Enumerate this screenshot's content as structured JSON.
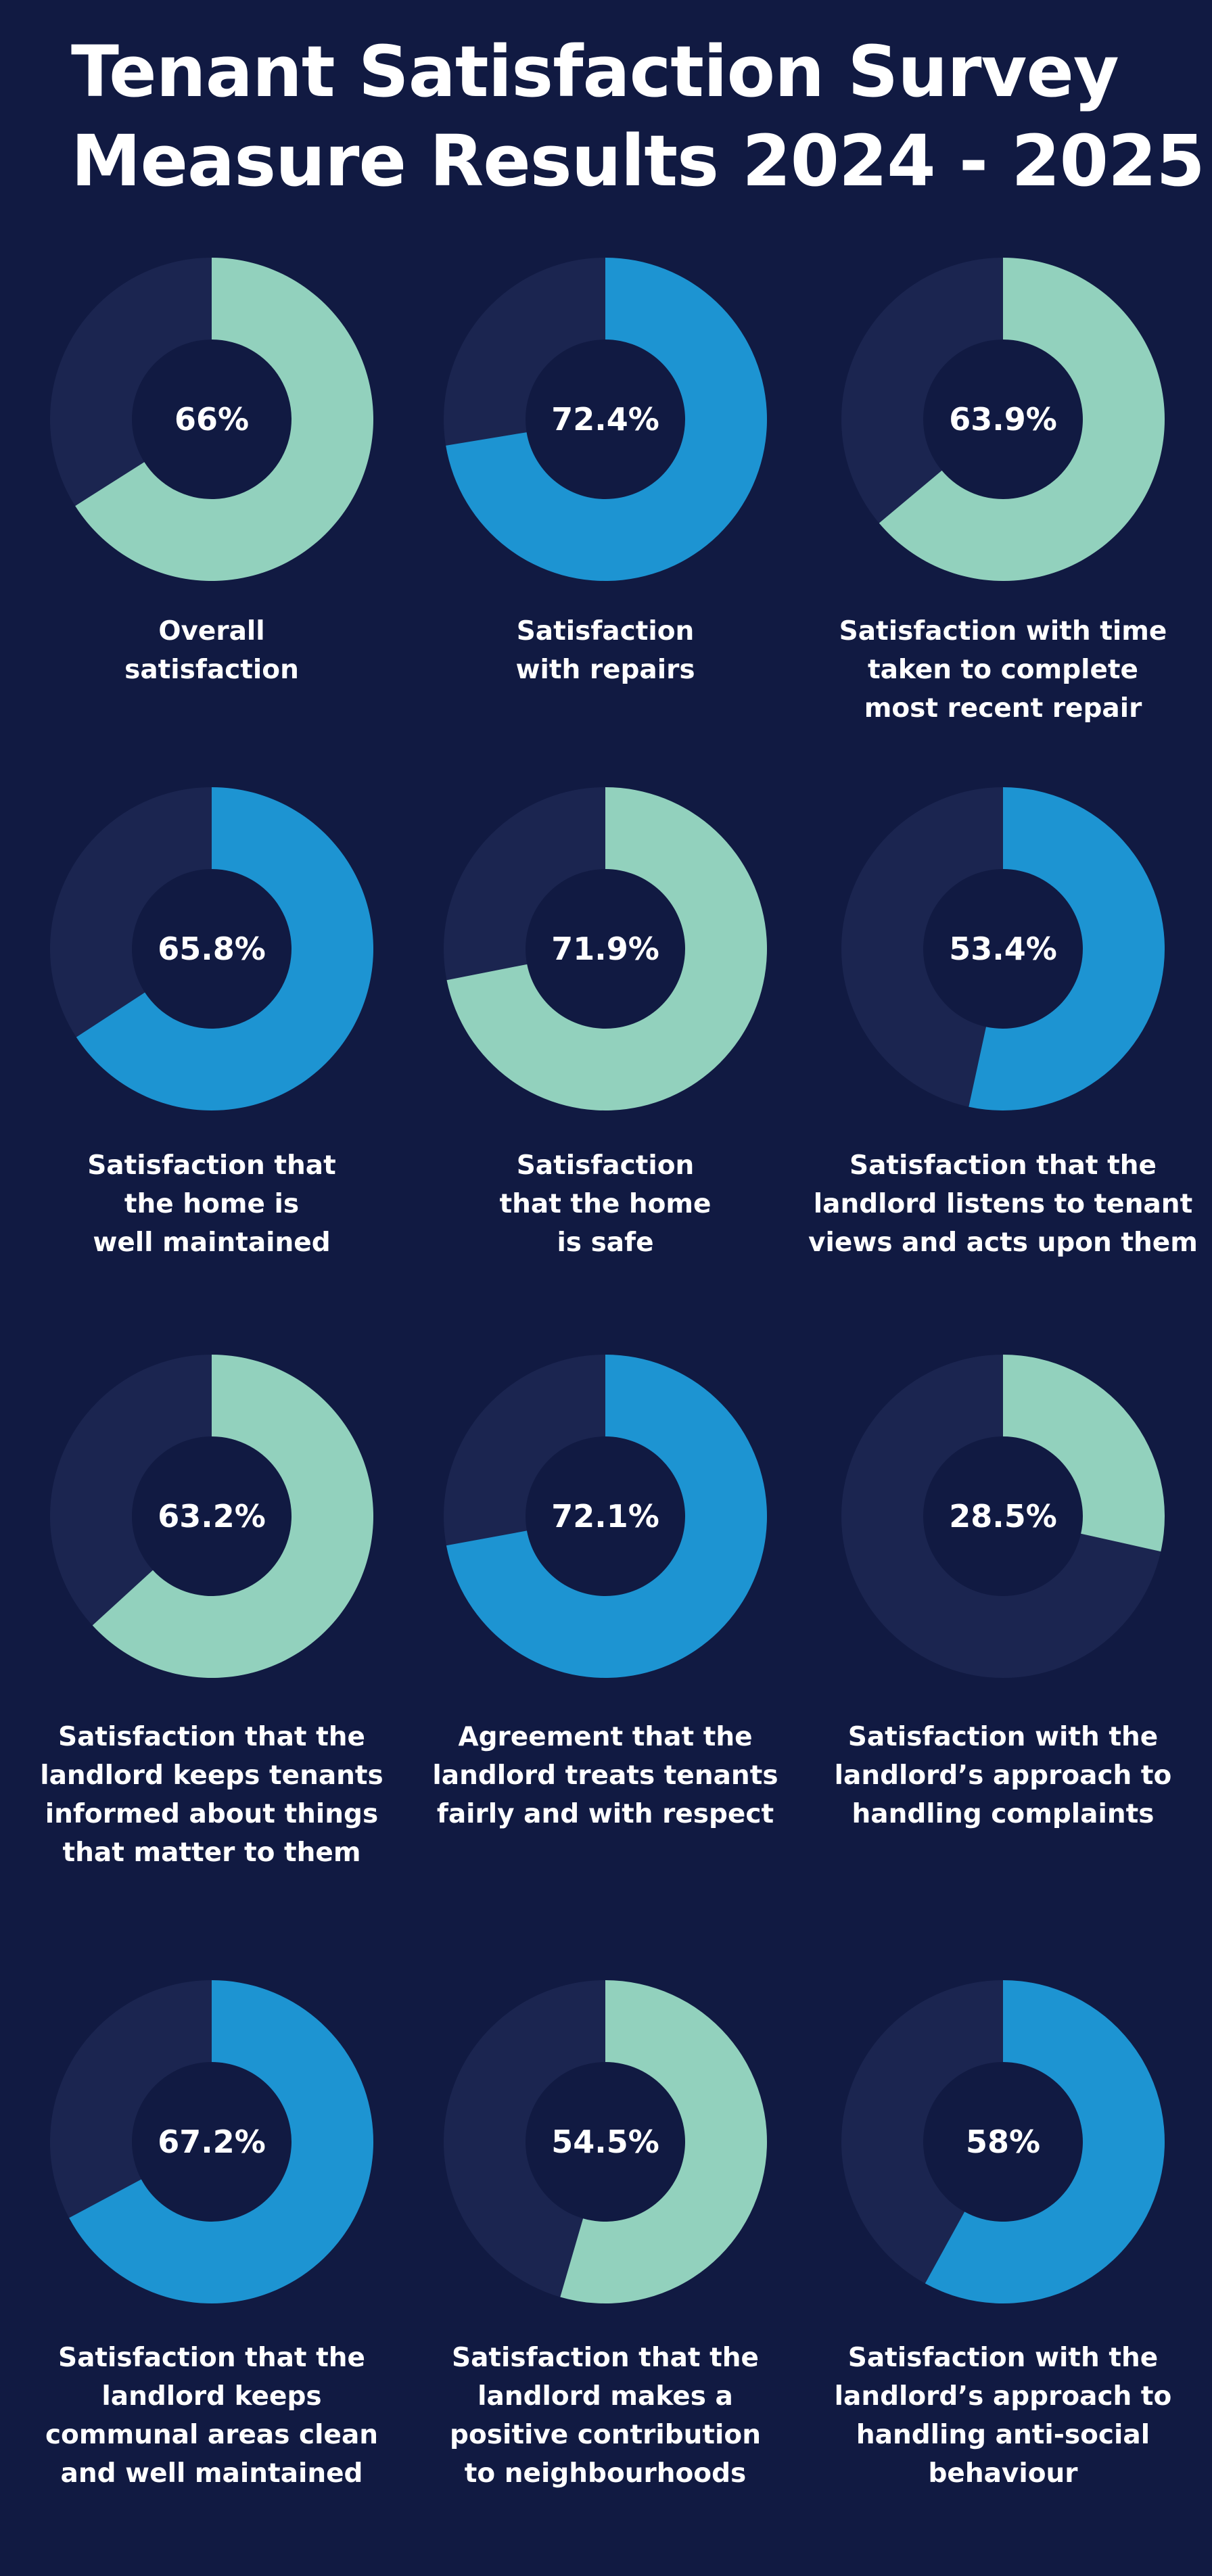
{
  "title": {
    "line1": "Tenant Satisfaction Survey",
    "line2": "Measure Results 2024 - 2025"
  },
  "colors": {
    "background": "#111a42",
    "track": "#1b2550",
    "teal": "#92d1bd",
    "blue": "#1d94d2",
    "text": "#ffffff"
  },
  "chart_data": [
    {
      "type": "donut",
      "value": 66,
      "label": "66%",
      "color": "teal",
      "caption": "Overall\nsatisfaction"
    },
    {
      "type": "donut",
      "value": 72.4,
      "label": "72.4%",
      "color": "blue",
      "caption": "Satisfaction\nwith repairs"
    },
    {
      "type": "donut",
      "value": 63.9,
      "label": "63.9%",
      "color": "teal",
      "caption": "Satisfaction with time\ntaken to complete\nmost recent repair"
    },
    {
      "type": "donut",
      "value": 65.8,
      "label": "65.8%",
      "color": "blue",
      "caption": "Satisfaction that\nthe home is\nwell maintained"
    },
    {
      "type": "donut",
      "value": 71.9,
      "label": "71.9%",
      "color": "teal",
      "caption": "Satisfaction\nthat the home\nis safe"
    },
    {
      "type": "donut",
      "value": 53.4,
      "label": "53.4%",
      "color": "blue",
      "caption": "Satisfaction that the\nlandlord listens to tenant\nviews and acts upon them"
    },
    {
      "type": "donut",
      "value": 63.2,
      "label": "63.2%",
      "color": "teal",
      "caption": "Satisfaction that the\nlandlord keeps tenants\ninformed about things\nthat matter to them"
    },
    {
      "type": "donut",
      "value": 72.1,
      "label": "72.1%",
      "color": "blue",
      "caption": "Agreement that the\nlandlord treats tenants\nfairly and with respect"
    },
    {
      "type": "donut",
      "value": 28.5,
      "label": "28.5%",
      "color": "teal",
      "caption": "Satisfaction with the\nlandlord’s approach to\nhandling complaints"
    },
    {
      "type": "donut",
      "value": 67.2,
      "label": "67.2%",
      "color": "blue",
      "caption": "Satisfaction that the\nlandlord keeps\ncommunal areas clean\nand well maintained"
    },
    {
      "type": "donut",
      "value": 54.5,
      "label": "54.5%",
      "color": "teal",
      "caption": "Satisfaction that the\nlandlord makes a\npositive contribution\nto neighbourhoods"
    },
    {
      "type": "donut",
      "value": 58,
      "label": "58%",
      "color": "blue",
      "caption": "Satisfaction with the\nlandlord’s approach to\nhandling anti-social\nbehaviour"
    }
  ]
}
